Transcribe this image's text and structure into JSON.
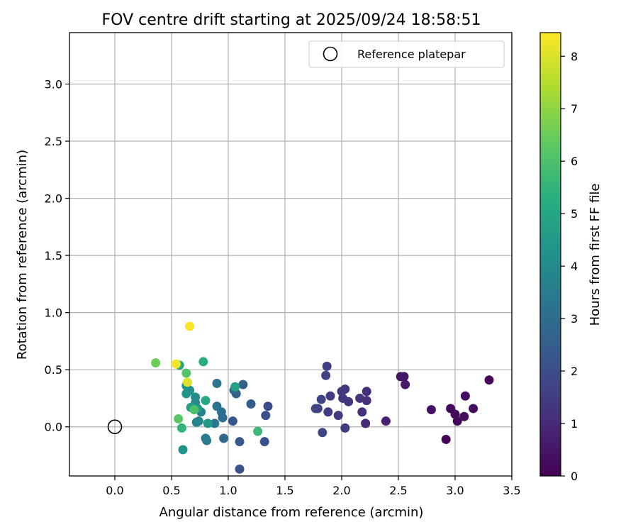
{
  "chart_data": {
    "type": "scatter",
    "title": "FOV centre drift starting at 2025/09/24 18:58:51",
    "xlabel": "Angular distance from reference (arcmin)",
    "ylabel": "Rotation from reference (arcmin)",
    "xlim": [
      -0.4,
      3.5
    ],
    "ylim": [
      -0.43,
      3.45
    ],
    "xticks": [
      "0.0",
      "0.5",
      "1.0",
      "1.5",
      "2.0",
      "2.5",
      "3.0",
      "3.5"
    ],
    "yticks": [
      "0.0",
      "0.5",
      "1.0",
      "1.5",
      "2.0",
      "2.5",
      "3.0"
    ],
    "grid": true,
    "legend": {
      "position": "top-right",
      "entries": [
        {
          "label": "Reference platepar",
          "marker": "open-circle"
        }
      ]
    },
    "reference_point": {
      "x": 0.0,
      "y": 0.0
    },
    "colorbar": {
      "label": "Hours from first FF file",
      "ticks": [
        "0",
        "1",
        "2",
        "3",
        "4",
        "5",
        "6",
        "7",
        "8"
      ],
      "range": [
        0,
        8.45
      ],
      "colormap": "viridis"
    },
    "points": [
      {
        "x": 3.3,
        "y": 0.41,
        "h": 0.1
      },
      {
        "x": 2.92,
        "y": -0.11,
        "h": 0.1
      },
      {
        "x": 3.02,
        "y": 0.05,
        "h": 0.15
      },
      {
        "x": 3.0,
        "y": 0.11,
        "h": 0.2
      },
      {
        "x": 2.96,
        "y": 0.16,
        "h": 0.2
      },
      {
        "x": 3.08,
        "y": 0.09,
        "h": 0.25
      },
      {
        "x": 3.09,
        "y": 0.27,
        "h": 0.3
      },
      {
        "x": 3.16,
        "y": 0.16,
        "h": 0.35
      },
      {
        "x": 2.79,
        "y": 0.15,
        "h": 0.4
      },
      {
        "x": 2.52,
        "y": 0.44,
        "h": 0.5
      },
      {
        "x": 2.55,
        "y": 0.44,
        "h": 0.55
      },
      {
        "x": 2.56,
        "y": 0.37,
        "h": 0.6
      },
      {
        "x": 2.39,
        "y": 0.05,
        "h": 0.8
      },
      {
        "x": 2.21,
        "y": 0.03,
        "h": 1.0
      },
      {
        "x": 2.22,
        "y": 0.31,
        "h": 1.1
      },
      {
        "x": 2.22,
        "y": 0.23,
        "h": 1.15
      },
      {
        "x": 2.18,
        "y": 0.13,
        "h": 1.2
      },
      {
        "x": 2.16,
        "y": 0.25,
        "h": 1.25
      },
      {
        "x": 2.06,
        "y": 0.22,
        "h": 1.3
      },
      {
        "x": 2.03,
        "y": 0.33,
        "h": 1.3
      },
      {
        "x": 2.0,
        "y": 0.31,
        "h": 1.35
      },
      {
        "x": 2.01,
        "y": 0.25,
        "h": 1.4
      },
      {
        "x": 1.97,
        "y": 0.1,
        "h": 1.45
      },
      {
        "x": 2.03,
        "y": -0.01,
        "h": 1.5
      },
      {
        "x": 1.9,
        "y": 0.27,
        "h": 1.5
      },
      {
        "x": 1.88,
        "y": 0.13,
        "h": 1.55
      },
      {
        "x": 1.87,
        "y": 0.53,
        "h": 1.6
      },
      {
        "x": 1.86,
        "y": 0.45,
        "h": 1.65
      },
      {
        "x": 1.82,
        "y": 0.24,
        "h": 1.7
      },
      {
        "x": 1.79,
        "y": 0.16,
        "h": 1.75
      },
      {
        "x": 1.77,
        "y": 0.16,
        "h": 1.8
      },
      {
        "x": 1.83,
        "y": -0.05,
        "h": 1.8
      },
      {
        "x": 1.35,
        "y": 0.18,
        "h": 2.0
      },
      {
        "x": 1.33,
        "y": 0.1,
        "h": 2.05
      },
      {
        "x": 1.32,
        "y": -0.13,
        "h": 2.1
      },
      {
        "x": 1.1,
        "y": -0.37,
        "h": 2.2
      },
      {
        "x": 1.1,
        "y": -0.13,
        "h": 2.3
      },
      {
        "x": 1.04,
        "y": 0.05,
        "h": 2.35
      },
      {
        "x": 1.2,
        "y": 0.2,
        "h": 2.5
      },
      {
        "x": 1.13,
        "y": 0.37,
        "h": 2.6
      },
      {
        "x": 1.07,
        "y": 0.29,
        "h": 2.7
      },
      {
        "x": 1.05,
        "y": 0.32,
        "h": 2.8
      },
      {
        "x": 0.96,
        "y": -0.1,
        "h": 2.9
      },
      {
        "x": 0.95,
        "y": 0.08,
        "h": 3.0
      },
      {
        "x": 0.94,
        "y": 0.13,
        "h": 3.1
      },
      {
        "x": 0.9,
        "y": 0.18,
        "h": 3.2
      },
      {
        "x": 0.9,
        "y": 0.38,
        "h": 3.3
      },
      {
        "x": 0.88,
        "y": 0.03,
        "h": 3.35
      },
      {
        "x": 0.81,
        "y": -0.12,
        "h": 3.45
      },
      {
        "x": 0.8,
        "y": -0.1,
        "h": 3.55
      },
      {
        "x": 0.76,
        "y": 0.13,
        "h": 3.65
      },
      {
        "x": 0.72,
        "y": 0.04,
        "h": 3.75
      },
      {
        "x": 0.74,
        "y": 0.05,
        "h": 3.85
      },
      {
        "x": 0.71,
        "y": 0.21,
        "h": 3.95
      },
      {
        "x": 0.71,
        "y": 0.26,
        "h": 4.05
      },
      {
        "x": 0.66,
        "y": 0.32,
        "h": 4.15
      },
      {
        "x": 0.63,
        "y": 0.36,
        "h": 4.25
      },
      {
        "x": 0.6,
        "y": -0.2,
        "h": 4.3
      },
      {
        "x": 0.63,
        "y": 0.29,
        "h": 4.4
      },
      {
        "x": 0.73,
        "y": 0.16,
        "h": 4.5
      },
      {
        "x": 0.82,
        "y": 0.03,
        "h": 4.6
      },
      {
        "x": 0.67,
        "y": 0.17,
        "h": 4.75
      },
      {
        "x": 1.06,
        "y": 0.35,
        "h": 4.85
      },
      {
        "x": 0.8,
        "y": 0.23,
        "h": 5.05
      },
      {
        "x": 0.57,
        "y": 0.54,
        "h": 5.15
      },
      {
        "x": 0.78,
        "y": 0.57,
        "h": 5.3
      },
      {
        "x": 0.59,
        "y": -0.01,
        "h": 5.55
      },
      {
        "x": 1.26,
        "y": -0.04,
        "h": 5.75
      },
      {
        "x": 0.7,
        "y": 0.15,
        "h": 6.05
      },
      {
        "x": 0.63,
        "y": 0.47,
        "h": 6.2
      },
      {
        "x": 0.56,
        "y": 0.07,
        "h": 6.3
      },
      {
        "x": 0.36,
        "y": 0.56,
        "h": 6.6
      },
      {
        "x": 0.64,
        "y": 0.39,
        "h": 8.0
      },
      {
        "x": 0.54,
        "y": 0.55,
        "h": 8.3
      },
      {
        "x": 0.66,
        "y": 0.88,
        "h": 8.4
      }
    ]
  }
}
